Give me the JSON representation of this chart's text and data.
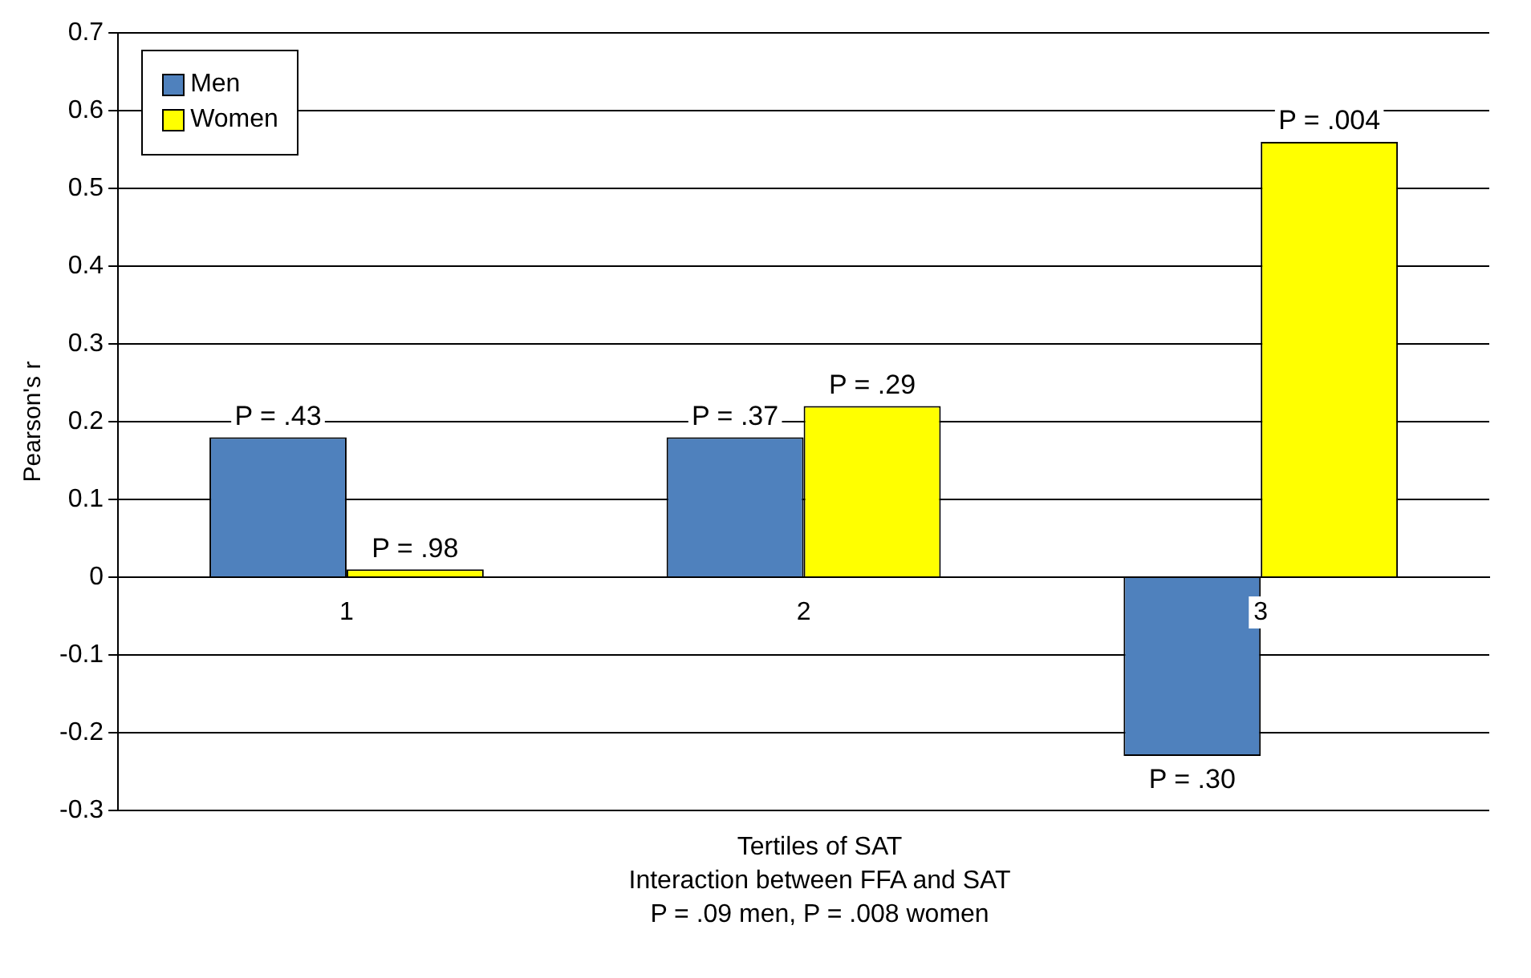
{
  "chart_data": {
    "type": "bar",
    "ylabel": "Pearson's r",
    "xlabel": "Tertiles of SAT",
    "categories": [
      "1",
      "2",
      "3"
    ],
    "series": [
      {
        "name": "Men",
        "color": "#4f81bd",
        "values": [
          0.18,
          0.18,
          -0.23
        ]
      },
      {
        "name": "Women",
        "color": "#ffff00",
        "values": [
          0.01,
          0.22,
          0.56
        ]
      }
    ],
    "ylim": [
      -0.3,
      0.7
    ],
    "yticks": [
      -0.3,
      -0.2,
      -0.1,
      0,
      0.1,
      0.2,
      0.3,
      0.4,
      0.5,
      0.6,
      0.7
    ],
    "grid": "y",
    "legend": "top left",
    "annotations": [
      {
        "text": "P = .43",
        "x": "1",
        "y": 0.18
      },
      {
        "text": "P = .98",
        "x": "1",
        "y": 0.01
      },
      {
        "text": "P = .37",
        "x": "2",
        "y": 0.18
      },
      {
        "text": "P = .29",
        "x": "2",
        "y": 0.22
      },
      {
        "text": "P = .30",
        "x": "3",
        "y": -0.23
      },
      {
        "text": "P = .004",
        "x": "3",
        "y": 0.56
      },
      "Interaction between FFA and SAT",
      "P = .09 men, P = .008 women"
    ]
  }
}
